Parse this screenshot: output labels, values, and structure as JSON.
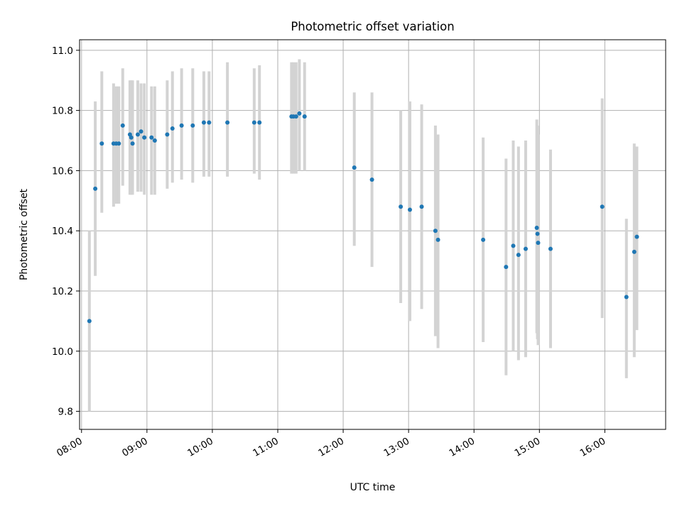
{
  "chart_data": {
    "type": "scatter",
    "title": "Photometric offset variation",
    "xlabel": "UTC time",
    "ylabel": "Photometric offset",
    "xlim": [
      7.97,
      16.93
    ],
    "ylim": [
      9.74,
      11.035
    ],
    "grid": true,
    "x_ticks": [
      8,
      9,
      10,
      11,
      12,
      13,
      14,
      15,
      16
    ],
    "x_tick_labels": [
      "08:00",
      "09:00",
      "10:00",
      "11:00",
      "12:00",
      "13:00",
      "14:00",
      "15:00",
      "16:00"
    ],
    "y_ticks": [
      9.8,
      10.0,
      10.2,
      10.4,
      10.6,
      10.8,
      11.0
    ],
    "y_tick_labels": [
      "9.8",
      "10.0",
      "10.2",
      "10.4",
      "10.6",
      "10.8",
      "11.0"
    ],
    "point_color": "#1f77b4",
    "errorbar_color": "#d3d3d3",
    "series": [
      {
        "name": "Photometric offset",
        "x": [
          8.12,
          8.21,
          8.31,
          8.49,
          8.53,
          8.57,
          8.63,
          8.74,
          8.76,
          8.78,
          8.86,
          8.91,
          8.96,
          9.07,
          9.12,
          9.31,
          9.39,
          9.53,
          9.7,
          9.87,
          9.95,
          10.23,
          10.64,
          10.72,
          11.21,
          11.24,
          11.28,
          11.33,
          11.41,
          12.17,
          12.44,
          12.88,
          13.02,
          13.2,
          13.41,
          13.45,
          14.14,
          14.49,
          14.6,
          14.68,
          14.79,
          14.96,
          14.97,
          14.98,
          15.17,
          15.96,
          16.33,
          16.45,
          16.49
        ],
        "y": [
          10.1,
          10.54,
          10.69,
          10.69,
          10.69,
          10.69,
          10.75,
          10.72,
          10.71,
          10.69,
          10.72,
          10.73,
          10.71,
          10.71,
          10.7,
          10.72,
          10.74,
          10.75,
          10.75,
          10.76,
          10.76,
          10.76,
          10.76,
          10.76,
          10.78,
          10.78,
          10.78,
          10.79,
          10.78,
          10.61,
          10.57,
          10.48,
          10.47,
          10.48,
          10.4,
          10.37,
          10.37,
          10.28,
          10.35,
          10.32,
          10.34,
          10.41,
          10.39,
          10.36,
          10.34,
          10.48,
          10.18,
          10.33,
          10.38
        ],
        "yerr_low": [
          9.8,
          10.25,
          10.46,
          10.48,
          10.49,
          10.49,
          10.55,
          10.52,
          10.52,
          10.52,
          10.53,
          10.53,
          10.52,
          10.52,
          10.52,
          10.54,
          10.56,
          10.57,
          10.56,
          10.58,
          10.58,
          10.58,
          10.59,
          10.57,
          10.59,
          10.59,
          10.59,
          10.6,
          10.6,
          10.35,
          10.28,
          10.16,
          10.1,
          10.14,
          10.05,
          10.01,
          10.03,
          9.92,
          10.0,
          9.97,
          9.98,
          10.06,
          10.04,
          10.02,
          10.01,
          10.11,
          9.91,
          9.98,
          10.07
        ],
        "yerr_high": [
          10.4,
          10.83,
          10.93,
          10.89,
          10.88,
          10.88,
          10.94,
          10.9,
          10.9,
          10.9,
          10.9,
          10.89,
          10.89,
          10.88,
          10.88,
          10.9,
          10.93,
          10.94,
          10.94,
          10.93,
          10.93,
          10.96,
          10.94,
          10.95,
          10.96,
          10.96,
          10.96,
          10.97,
          10.96,
          10.86,
          10.86,
          10.8,
          10.83,
          10.82,
          10.75,
          10.72,
          10.71,
          10.64,
          10.7,
          10.68,
          10.7,
          10.77,
          10.75,
          10.72,
          10.67,
          10.84,
          10.44,
          10.69,
          10.68
        ]
      }
    ]
  }
}
